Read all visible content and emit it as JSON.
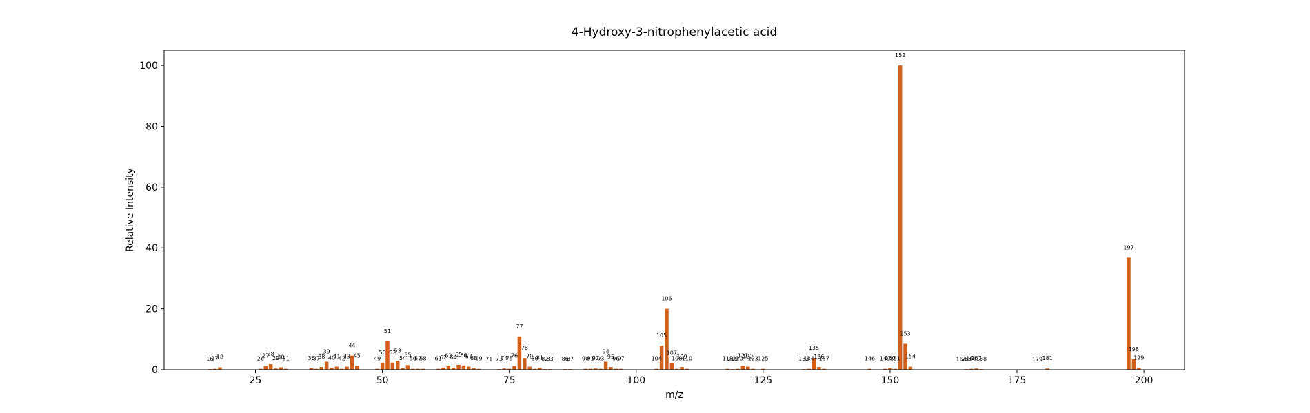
{
  "chart_data": {
    "type": "bar",
    "title": "4-Hydroxy-3-nitrophenylacetic acid",
    "xlabel": "m/z",
    "ylabel": "Relative Intensity",
    "xlim": [
      7,
      208
    ],
    "ylim": [
      0,
      105
    ],
    "xticks": [
      25,
      50,
      75,
      100,
      125,
      150,
      175,
      200
    ],
    "yticks": [
      0,
      20,
      40,
      60,
      80,
      100
    ],
    "grid": false,
    "bar_color": "#d2601a",
    "x": [
      16,
      17,
      18,
      26,
      27,
      28,
      29,
      30,
      31,
      36,
      37,
      38,
      39,
      40,
      41,
      42,
      43,
      44,
      45,
      49,
      50,
      51,
      52,
      53,
      54,
      55,
      56,
      57,
      58,
      61,
      62,
      63,
      64,
      65,
      66,
      67,
      68,
      69,
      71,
      73,
      74,
      75,
      76,
      77,
      78,
      79,
      80,
      81,
      82,
      83,
      86,
      87,
      90,
      91,
      92,
      93,
      94,
      95,
      96,
      97,
      104,
      105,
      106,
      107,
      108,
      109,
      110,
      118,
      119,
      120,
      121,
      122,
      123,
      125,
      133,
      134,
      135,
      136,
      137,
      146,
      149,
      150,
      151,
      152,
      153,
      154,
      164,
      165,
      166,
      167,
      168,
      179,
      181,
      197,
      198,
      199
    ],
    "values": [
      0.2,
      0.3,
      0.8,
      0.3,
      1.2,
      1.8,
      0.4,
      0.8,
      0.3,
      0.5,
      0.3,
      0.9,
      2.6,
      0.6,
      1.0,
      0.3,
      1.0,
      4.6,
      1.3,
      0.3,
      2.3,
      9.3,
      2.3,
      2.8,
      0.5,
      1.5,
      0.3,
      0.3,
      0.3,
      0.3,
      0.7,
      1.3,
      0.7,
      1.6,
      1.4,
      1.0,
      0.5,
      0.3,
      0.1,
      0.2,
      0.4,
      0.3,
      1.2,
      10.9,
      3.8,
      1.0,
      0.3,
      0.6,
      0.2,
      0.2,
      0.2,
      0.2,
      0.3,
      0.3,
      0.4,
      0.3,
      2.6,
      0.9,
      0.3,
      0.3,
      0.3,
      7.9,
      20.0,
      2.1,
      0.3,
      0.9,
      0.3,
      0.3,
      0.2,
      0.3,
      1.3,
      1.0,
      0.3,
      0.3,
      0.2,
      0.3,
      3.8,
      0.9,
      0.3,
      0.3,
      0.3,
      0.5,
      0.3,
      100.0,
      8.5,
      1.0,
      0.1,
      0.2,
      0.3,
      0.4,
      0.2,
      0.1,
      0.4,
      36.8,
      3.4,
      0.6
    ]
  }
}
